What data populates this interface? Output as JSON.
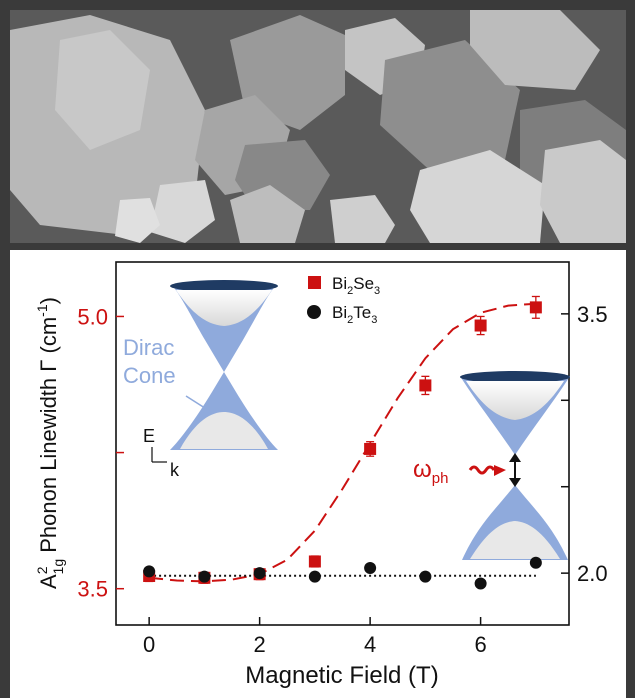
{
  "figure": {
    "micrograph_panel": {
      "description_icon": "sem-micrograph-hexagonal-flakes"
    },
    "chart_panel": {
      "colors": {
        "bi2se3": "#cc1111",
        "bi2te3": "#111111",
        "cone_fill": "#8faadc",
        "cone_rim": "#1f3b63",
        "left_axis_text": "#cc1111",
        "right_axis_text": "#111111"
      },
      "insets": {
        "dirac_label_line1": "Dirac",
        "dirac_label_line2": "Cone",
        "energy_axis": "E",
        "momentum_axis": "k",
        "omega_main": "ω",
        "omega_sub": "ph"
      }
    }
  },
  "chart_data": {
    "type": "scatter",
    "xlabel": "Magnetic Field (T)",
    "ylabel": {
      "prefix": "A",
      "sup": "2",
      "sub": "1g",
      "rest": " Phonon Linewidth Γ (cm",
      "unit_sup": "-1",
      "close": ")"
    },
    "xlim": [
      -0.6,
      7.6
    ],
    "ylim_left": [
      3.3,
      5.3
    ],
    "ylim_right": [
      1.7,
      3.8
    ],
    "x_ticks": [
      0,
      2,
      4,
      6
    ],
    "x_tick_labels": [
      "0",
      "2",
      "4",
      "6"
    ],
    "y_left_labeled_ticks": [
      3.5,
      5.0
    ],
    "y_left_tick_labels": [
      "3.5",
      "5.0"
    ],
    "y_left_minor_ticks": [
      4.25
    ],
    "y_right_ticks": [
      2.0,
      2.5,
      3.0,
      3.5
    ],
    "y_right_labeled_ticks": [
      2.0,
      3.5
    ],
    "y_right_tick_labels": [
      "2.0",
      "3.5"
    ],
    "grid": false,
    "legend_position": "top-center",
    "series": [
      {
        "name": "Bi2Se3",
        "name_main1": "Bi",
        "name_sub1": "2",
        "name_main2": "Se",
        "name_sub2": "3",
        "axis": "left",
        "marker": "square",
        "color": "#cc1111",
        "x": [
          0,
          1,
          2,
          3,
          4,
          5,
          6,
          7
        ],
        "y": [
          3.57,
          3.56,
          3.58,
          3.65,
          4.27,
          4.62,
          4.95,
          5.05
        ],
        "yerr": [
          0.03,
          0.03,
          0.03,
          0.03,
          0.04,
          0.05,
          0.05,
          0.06
        ],
        "fit": {
          "style": "dashed",
          "x": [
            0,
            0.5,
            1,
            1.5,
            2,
            2.5,
            3,
            3.5,
            4,
            4.5,
            5,
            5.5,
            6,
            6.5,
            7
          ],
          "y": [
            3.56,
            3.545,
            3.54,
            3.55,
            3.58,
            3.66,
            3.82,
            4.05,
            4.3,
            4.55,
            4.77,
            4.93,
            5.02,
            5.06,
            5.07
          ]
        }
      },
      {
        "name": "Bi2Te3",
        "name_main1": "Bi",
        "name_sub1": "2",
        "name_main2": "Te",
        "name_sub2": "3",
        "axis": "right",
        "marker": "circle",
        "color": "#111111",
        "x": [
          0,
          1,
          2,
          3,
          4,
          5,
          6,
          7
        ],
        "y": [
          2.01,
          1.98,
          2.0,
          1.98,
          2.03,
          1.98,
          1.94,
          2.06
        ],
        "fit": {
          "style": "dotted",
          "x": [
            0,
            7
          ],
          "y": [
            1.985,
            1.985
          ]
        }
      }
    ]
  }
}
